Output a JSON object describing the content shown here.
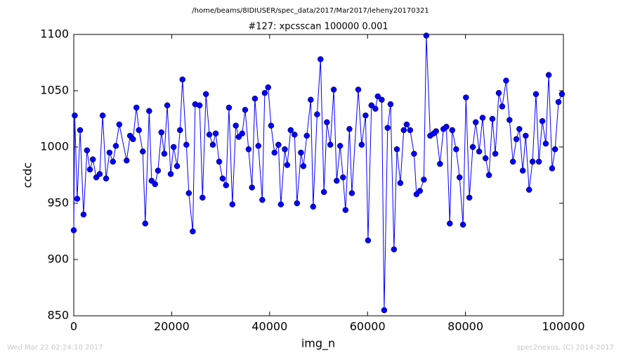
{
  "chart_data": {
    "type": "line",
    "suptitle": "/home/beams/8IDIUSER/spec_data/2017/Mar2017/leheny20170321",
    "title": "#127: xpcsscan 100000 0.001",
    "xlabel": "img_n",
    "ylabel": "ccdc",
    "footer_left": "Wed Mar 22 02:24:10 2017",
    "footer_right": "spec2nexus, (C) 2014-2017",
    "xlim": [
      0,
      100000
    ],
    "xticks": [
      0,
      20000,
      40000,
      60000,
      80000,
      100000
    ],
    "ylim": [
      850,
      1100
    ],
    "yticks": [
      850,
      900,
      950,
      1000,
      1050,
      1100
    ],
    "x": [
      0,
      200,
      700,
      1300,
      2000,
      2700,
      3300,
      3900,
      4600,
      5300,
      5900,
      6600,
      7300,
      8000,
      8600,
      9300,
      10800,
      11500,
      12100,
      12800,
      13300,
      14100,
      14600,
      15400,
      15900,
      16600,
      17200,
      17900,
      18500,
      19100,
      19800,
      20400,
      21100,
      21700,
      22200,
      23000,
      23500,
      24300,
      24800,
      25700,
      26300,
      27000,
      27700,
      28400,
      29000,
      29700,
      30400,
      31100,
      31700,
      32400,
      33100,
      33700,
      34400,
      35000,
      35700,
      36400,
      37000,
      37700,
      38500,
      39000,
      39700,
      40300,
      41000,
      41800,
      42300,
      43100,
      43600,
      44300,
      45100,
      45600,
      46400,
      46900,
      47600,
      48400,
      48900,
      49700,
      50400,
      51100,
      51700,
      52400,
      53100,
      53700,
      54400,
      55000,
      55500,
      56300,
      56800,
      58100,
      58800,
      59600,
      60100,
      60800,
      61600,
      62100,
      62900,
      63400,
      64100,
      64700,
      65400,
      66000,
      66700,
      67400,
      68000,
      68700,
      69500,
      70000,
      70700,
      71500,
      72000,
      72800,
      73500,
      74000,
      74800,
      75500,
      76100,
      76800,
      77300,
      78100,
      78800,
      79500,
      80100,
      80800,
      81500,
      82100,
      82800,
      83500,
      84100,
      84800,
      85500,
      86100,
      86800,
      87500,
      88300,
      89000,
      89700,
      90400,
      91000,
      91700,
      92300,
      93000,
      93700,
      94400,
      95000,
      95700,
      96400,
      97000,
      97700,
      98300,
      99000,
      99700
    ],
    "series": [
      {
        "color": "#0000ff",
        "values": [
          926,
          1028,
          954,
          1015,
          940,
          997,
          980,
          989,
          973,
          976,
          1028,
          972,
          995,
          987,
          1001,
          1020,
          988,
          1010,
          1007,
          1035,
          1015,
          996,
          932,
          1032,
          970,
          967,
          979,
          1013,
          994,
          1037,
          976,
          1000,
          983,
          1015,
          1060,
          1002,
          959,
          925,
          1038,
          1037,
          955,
          1047,
          1011,
          1002,
          1012,
          987,
          972,
          966,
          1035,
          949,
          1019,
          1009,
          1012,
          1033,
          998,
          964,
          1043,
          1001,
          953,
          1048,
          1053,
          1019,
          995,
          1002,
          949,
          998,
          984,
          1015,
          1011,
          950,
          995,
          983,
          1010,
          1042,
          947,
          1029,
          1078,
          960,
          1022,
          1002,
          1051,
          970,
          1001,
          973,
          944,
          1016,
          959,
          1051,
          1002,
          1028,
          917,
          1037,
          1034,
          1045,
          1042,
          855,
          1017,
          1038,
          909,
          998,
          968,
          1015,
          1020,
          1015,
          994,
          958,
          961,
          971,
          1099,
          1010,
          1012,
          1014,
          985,
          1016,
          1018,
          932,
          1015,
          998,
          973,
          931,
          1044,
          955,
          1000,
          1022,
          996,
          1026,
          990,
          975,
          1025,
          994,
          1048,
          1036,
          1059,
          1024,
          987,
          1007,
          1016,
          979,
          1010,
          962,
          987,
          1047,
          987,
          1023,
          1003,
          1064,
          981,
          998,
          1040,
          1047
        ]
      }
    ]
  }
}
